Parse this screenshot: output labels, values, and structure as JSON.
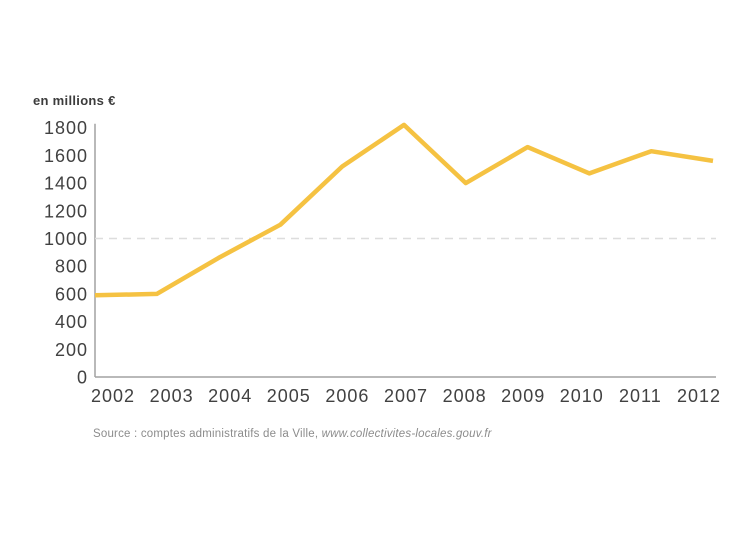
{
  "chart_data": {
    "type": "line",
    "title": "",
    "unit_label": "en millions €",
    "categories": [
      "2002",
      "2003",
      "2004",
      "2005",
      "2006",
      "2007",
      "2008",
      "2009",
      "2010",
      "2011",
      "2012"
    ],
    "values": [
      590,
      600,
      860,
      1100,
      1520,
      1820,
      1400,
      1660,
      1470,
      1630,
      1560
    ],
    "ylim": [
      0,
      1800
    ],
    "ytick_step": 200,
    "reference_line_value": 1000,
    "legend_position": "none",
    "grid": "single dashed horizontal reference line at 1000",
    "colors": {
      "line": "#F5C242",
      "axis": "#A2A2A2",
      "reference_line": "#DDDDDD",
      "tick_text": "#414141"
    }
  },
  "source": {
    "prefix": "Source : comptes administratifs de la Ville, ",
    "link": "www.collectivites-locales.gouv.fr"
  }
}
